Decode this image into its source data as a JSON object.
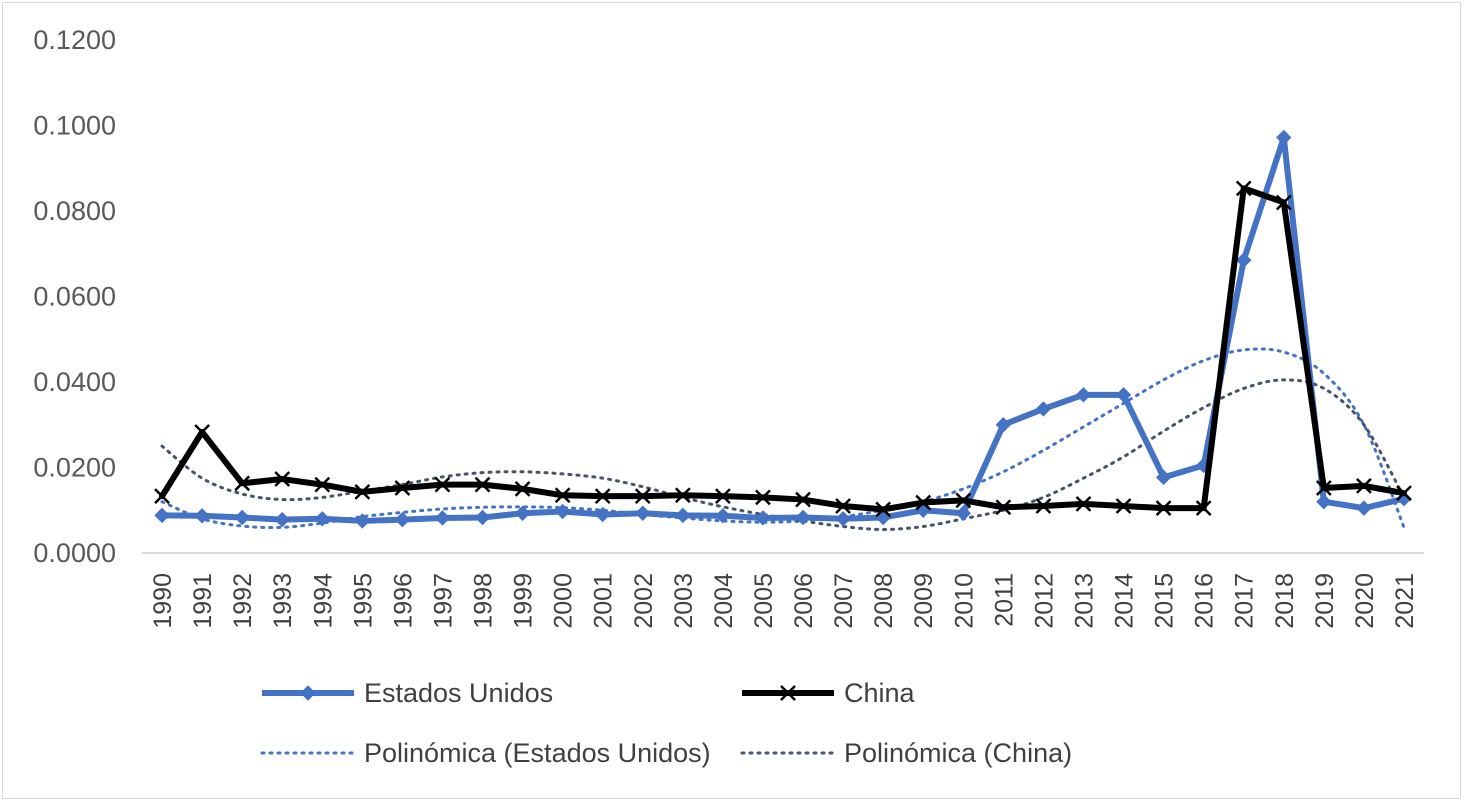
{
  "chart_data": {
    "type": "line",
    "title": "",
    "xlabel": "",
    "ylabel": "",
    "ylim": [
      0,
      0.12
    ],
    "yticks": [
      "0.0000",
      "0.0200",
      "0.0400",
      "0.0600",
      "0.0800",
      "0.1000",
      "0.1200"
    ],
    "categories": [
      "1990",
      "1991",
      "1992",
      "1993",
      "1994",
      "1995",
      "1996",
      "1997",
      "1998",
      "1999",
      "2000",
      "2001",
      "2002",
      "2003",
      "2004",
      "2005",
      "2006",
      "2007",
      "2008",
      "2009",
      "2010",
      "2011",
      "2012",
      "2013",
      "2014",
      "2015",
      "2016",
      "2017",
      "2018",
      "2019",
      "2020",
      "2021"
    ],
    "grid": false,
    "legend_position": "bottom",
    "series": [
      {
        "name": "Estados Unidos",
        "color": "#4472c4",
        "marker": "diamond",
        "values": [
          0.0088,
          0.0087,
          0.0083,
          0.0078,
          0.008,
          0.0075,
          0.0078,
          0.0082,
          0.0083,
          0.0093,
          0.0097,
          0.009,
          0.0093,
          0.0088,
          0.0087,
          0.0082,
          0.0083,
          0.008,
          0.0083,
          0.01,
          0.0093,
          0.03,
          0.0337,
          0.037,
          0.037,
          0.0177,
          0.0205,
          0.0685,
          0.0972,
          0.012,
          0.0105,
          0.0127
        ]
      },
      {
        "name": "China",
        "color": "#000000",
        "marker": "x",
        "values": [
          0.0133,
          0.0283,
          0.0163,
          0.0173,
          0.016,
          0.0143,
          0.0152,
          0.016,
          0.016,
          0.015,
          0.0135,
          0.0133,
          0.0133,
          0.0135,
          0.0133,
          0.013,
          0.0125,
          0.011,
          0.0102,
          0.0118,
          0.0123,
          0.0107,
          0.011,
          0.0115,
          0.011,
          0.0105,
          0.0105,
          0.0853,
          0.082,
          0.0152,
          0.0157,
          0.014
        ]
      }
    ],
    "trendlines": [
      {
        "name": "Polinómica (Estados Unidos)",
        "color": "#4472c4",
        "style": "dotted",
        "values": [
          0.012,
          0.008,
          0.0063,
          0.006,
          0.007,
          0.0085,
          0.0095,
          0.0103,
          0.0107,
          0.0108,
          0.0106,
          0.01,
          0.009,
          0.0082,
          0.0075,
          0.0072,
          0.0075,
          0.0085,
          0.01,
          0.012,
          0.015,
          0.019,
          0.024,
          0.0295,
          0.035,
          0.0405,
          0.045,
          0.0475,
          0.047,
          0.042,
          0.03,
          0.006
        ]
      },
      {
        "name": "Polinómica (China)",
        "color": "#44546a",
        "style": "dotted",
        "values": [
          0.025,
          0.0175,
          0.0138,
          0.0125,
          0.013,
          0.0145,
          0.016,
          0.0178,
          0.0188,
          0.019,
          0.0185,
          0.0175,
          0.0155,
          0.013,
          0.0108,
          0.009,
          0.0075,
          0.0062,
          0.0055,
          0.0062,
          0.008,
          0.01,
          0.013,
          0.0175,
          0.0225,
          0.0285,
          0.034,
          0.0385,
          0.0405,
          0.0385,
          0.03,
          0.013
        ]
      }
    ]
  }
}
